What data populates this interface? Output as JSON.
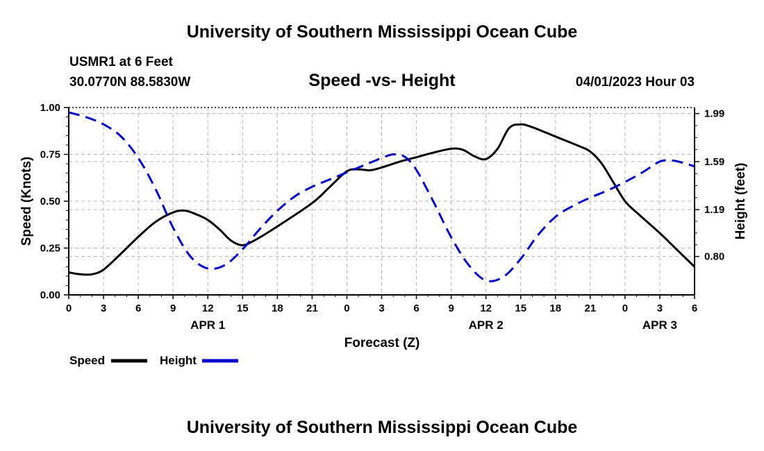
{
  "header": {
    "title": "University of Southern Mississippi Ocean Cube",
    "station": "USMR1 at 6 Feet",
    "coords": "30.0770N  88.5830W",
    "subtitle": "Speed -vs- Height",
    "datetime": "04/01/2023 Hour 03"
  },
  "footer": {
    "title": "University of Southern Mississippi Ocean Cube"
  },
  "colors": {
    "speed": "#000000",
    "height": "#0000cc",
    "grid": "#b4b4b4"
  },
  "chart_data": {
    "type": "line",
    "title": "Speed -vs- Height",
    "xlabel": "Forecast (Z)",
    "ylabel": "Speed (Knots)",
    "y2label": "Height (feet)",
    "xlim": [
      0,
      54
    ],
    "ylim": [
      0,
      1
    ],
    "y2lim": [
      0.48,
      2.04
    ],
    "x_ticks": [
      {
        "x": 0,
        "label": "0"
      },
      {
        "x": 3,
        "label": "3"
      },
      {
        "x": 6,
        "label": "6"
      },
      {
        "x": 9,
        "label": "9"
      },
      {
        "x": 12,
        "label": "12"
      },
      {
        "x": 15,
        "label": "15"
      },
      {
        "x": 18,
        "label": "18"
      },
      {
        "x": 21,
        "label": "21"
      },
      {
        "x": 24,
        "label": "0"
      },
      {
        "x": 27,
        "label": "3"
      },
      {
        "x": 30,
        "label": "6"
      },
      {
        "x": 33,
        "label": "9"
      },
      {
        "x": 36,
        "label": "12"
      },
      {
        "x": 39,
        "label": "15"
      },
      {
        "x": 42,
        "label": "18"
      },
      {
        "x": 45,
        "label": "21"
      },
      {
        "x": 48,
        "label": "0"
      },
      {
        "x": 51,
        "label": "3"
      },
      {
        "x": 54,
        "label": "6"
      }
    ],
    "day_labels": [
      {
        "x": 12,
        "label": "APR 1"
      },
      {
        "x": 36,
        "label": "APR 2"
      },
      {
        "x": 51,
        "label": "APR 3"
      }
    ],
    "y_ticks": [
      {
        "v": 0,
        "label": "0.00"
      },
      {
        "v": 0.25,
        "label": "0.25"
      },
      {
        "v": 0.5,
        "label": "0.50"
      },
      {
        "v": 0.75,
        "label": "0.75"
      },
      {
        "v": 1,
        "label": "1.00"
      }
    ],
    "y2_ticks": [
      {
        "v": 0.8,
        "label": "0.80"
      },
      {
        "v": 1.19,
        "label": "1.19"
      },
      {
        "v": 1.59,
        "label": "1.59"
      },
      {
        "v": 1.99,
        "label": "1.99"
      }
    ],
    "series": [
      {
        "name": "Speed",
        "axis": "left",
        "style": "solid",
        "x": [
          0,
          1,
          2,
          3,
          4.5,
          6,
          7.5,
          9,
          10,
          11,
          12,
          13,
          14,
          15,
          16,
          18,
          21,
          22.5,
          24,
          25,
          26,
          27,
          28.5,
          30,
          31.5,
          33,
          34,
          35,
          36,
          37,
          38,
          39,
          40,
          42,
          44,
          45,
          46,
          47,
          48,
          49,
          51,
          52,
          54
        ],
        "values": [
          0.12,
          0.11,
          0.11,
          0.135,
          0.22,
          0.31,
          0.39,
          0.44,
          0.45,
          0.43,
          0.4,
          0.35,
          0.29,
          0.265,
          0.29,
          0.365,
          0.49,
          0.575,
          0.66,
          0.67,
          0.665,
          0.68,
          0.71,
          0.735,
          0.76,
          0.78,
          0.775,
          0.74,
          0.725,
          0.78,
          0.89,
          0.91,
          0.895,
          0.845,
          0.795,
          0.765,
          0.7,
          0.6,
          0.5,
          0.44,
          0.33,
          0.27,
          0.15
        ]
      },
      {
        "name": "Height",
        "axis": "right",
        "style": "dashed",
        "x": [
          0,
          1.5,
          3,
          4.5,
          6,
          7.5,
          9,
          10.5,
          12,
          13.5,
          15,
          16.5,
          18,
          19.5,
          21,
          22.5,
          24,
          25.5,
          27,
          28,
          29,
          30,
          31.5,
          33,
          34.5,
          36,
          37.5,
          39,
          40.5,
          42,
          43.5,
          45,
          46.5,
          48,
          49.5,
          51,
          52,
          53,
          54
        ],
        "values": [
          2.0,
          1.96,
          1.9,
          1.8,
          1.62,
          1.36,
          1.04,
          0.8,
          0.7,
          0.73,
          0.86,
          1.03,
          1.18,
          1.3,
          1.38,
          1.44,
          1.5,
          1.56,
          1.62,
          1.65,
          1.63,
          1.52,
          1.25,
          0.96,
          0.73,
          0.6,
          0.63,
          0.78,
          0.98,
          1.13,
          1.22,
          1.29,
          1.35,
          1.42,
          1.5,
          1.59,
          1.6,
          1.58,
          1.55
        ]
      }
    ]
  },
  "legend": {
    "speed_label": "Speed",
    "height_label": "Height"
  }
}
